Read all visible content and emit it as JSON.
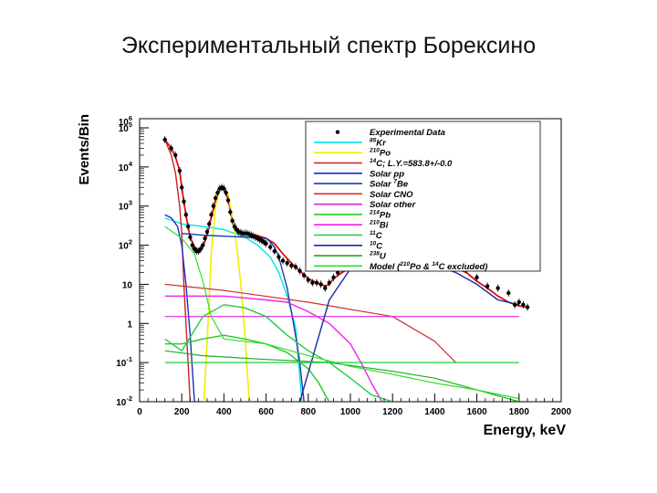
{
  "slide": {
    "title": "Экспериментальный спектр Борексино"
  },
  "chart_data": {
    "type": "line",
    "xlabel": "Energy, keV",
    "ylabel": "Events/Bin",
    "xlim": [
      0,
      2000
    ],
    "ylim": [
      0.01,
      100000
    ],
    "yscale": "log",
    "grid": false,
    "legend_position": "top-right",
    "x_ticks": [
      "0",
      "200",
      "400",
      "600",
      "800",
      "1000",
      "1200",
      "1400",
      "1600",
      "1800",
      "2000"
    ],
    "y_ticks": [
      {
        "base": "10",
        "exp": "-2",
        "value": 0.01
      },
      {
        "base": "10",
        "exp": "-1",
        "value": 0.1
      },
      {
        "base": "1",
        "exp": "",
        "value": 1
      },
      {
        "base": "10",
        "exp": "",
        "value": 10
      },
      {
        "base": "10",
        "exp": "2",
        "value": 100
      },
      {
        "base": "10",
        "exp": "3",
        "value": 1000
      },
      {
        "base": "10",
        "exp": "4",
        "value": 10000
      },
      {
        "base": "10",
        "exp": "5",
        "value": 100000
      },
      {
        "base": "10",
        "exp": "6",
        "value": 1000000
      }
    ],
    "data_series": {
      "name": "Experimental Data",
      "x": [
        120,
        150,
        170,
        190,
        200,
        210,
        220,
        230,
        240,
        250,
        260,
        270,
        280,
        290,
        300,
        310,
        320,
        330,
        340,
        350,
        360,
        370,
        380,
        390,
        400,
        410,
        420,
        430,
        440,
        450,
        460,
        470,
        480,
        490,
        500,
        510,
        520,
        530,
        540,
        550,
        560,
        570,
        580,
        590,
        600,
        620,
        640,
        660,
        680,
        700,
        720,
        740,
        760,
        780,
        800,
        820,
        840,
        860,
        880,
        900,
        920,
        940,
        960,
        980,
        1000,
        1050,
        1100,
        1150,
        1200,
        1250,
        1300,
        1350,
        1400,
        1450,
        1500,
        1550,
        1600,
        1650,
        1700,
        1750,
        1780,
        1800,
        1820,
        1840
      ],
      "y": [
        50000,
        30000,
        20000,
        8000,
        3000,
        1300,
        600,
        300,
        160,
        100,
        80,
        70,
        70,
        80,
        100,
        150,
        220,
        350,
        600,
        1000,
        1600,
        2200,
        2800,
        3000,
        2800,
        2200,
        1400,
        700,
        420,
        300,
        250,
        220,
        210,
        200,
        200,
        200,
        190,
        180,
        170,
        160,
        150,
        140,
        130,
        120,
        110,
        90,
        70,
        50,
        40,
        35,
        30,
        28,
        22,
        17,
        13,
        11,
        11,
        10,
        8,
        11,
        15,
        20,
        25,
        28,
        30,
        38,
        45,
        50,
        55,
        52,
        45,
        40,
        38,
        35,
        30,
        24,
        15,
        9,
        8,
        6,
        3,
        3.5,
        3,
        2.6
      ]
    },
    "legend": [
      {
        "kind": "marker",
        "text": "Experimental Data",
        "color": "#000000"
      },
      {
        "kind": "line",
        "text": "85Kr",
        "sup": "85",
        "main": "Kr",
        "color": "#00e5e5"
      },
      {
        "kind": "line",
        "text": "210Po",
        "sup": "210",
        "main": "Po",
        "color": "#f0f000"
      },
      {
        "kind": "line",
        "text": "14C; L.Y.=583.8+/-0.0",
        "sup": "14",
        "main": "C; L.Y.=583.8+/-0.0",
        "color": "#cc2222"
      },
      {
        "kind": "line",
        "text": "Solar pp",
        "sup": "",
        "main": "Solar pp",
        "color": "#1a2fc4"
      },
      {
        "kind": "line",
        "text": "Solar 7Be",
        "pre": "Solar ",
        "sup": "7",
        "main": "Be",
        "color": "#1a3ab0"
      },
      {
        "kind": "line",
        "text": "Solar CNO",
        "sup": "",
        "main": "Solar CNO",
        "color": "#d03030"
      },
      {
        "kind": "line",
        "text": "Solar other",
        "sup": "",
        "main": "Solar other",
        "color": "#dd22dd"
      },
      {
        "kind": "line",
        "text": "214Pb",
        "sup": "214",
        "main": "Pb",
        "color": "#22cc22"
      },
      {
        "kind": "line",
        "text": "210Bi",
        "sup": "210",
        "main": "Bi",
        "color": "#ee22ee"
      },
      {
        "kind": "line",
        "text": "11C",
        "sup": "11",
        "main": "C",
        "color": "#22cc44"
      },
      {
        "kind": "line",
        "text": "10C",
        "sup": "10",
        "main": "C",
        "color": "#1a2a9a"
      },
      {
        "kind": "line",
        "text": "238U",
        "sup": "238",
        "main": "U",
        "color": "#22aa22"
      },
      {
        "kind": "line",
        "text": "Model (210Po & 14C excluded)",
        "pre": "Model (",
        "sup": "210",
        "main": "Po & ",
        "sup2": "14",
        "main2": "C excluded)",
        "color": "#33dd33"
      }
    ],
    "series": [
      {
        "name": "Model",
        "color": "#dd1111",
        "width": 1.8,
        "x": [
          120,
          150,
          170,
          190,
          200,
          210,
          220,
          230,
          240,
          260,
          280,
          300,
          320,
          340,
          360,
          380,
          400,
          420,
          440,
          460,
          480,
          500,
          520,
          560,
          600,
          640,
          680,
          720,
          760,
          800,
          840,
          880,
          900,
          920,
          960,
          1000,
          1050,
          1100,
          1150,
          1200,
          1250,
          1300,
          1350,
          1400,
          1450,
          1500,
          1550,
          1600,
          1650,
          1700,
          1750,
          1800,
          1840
        ],
        "y": [
          50000,
          30000,
          18000,
          8000,
          3000,
          1300,
          600,
          300,
          160,
          90,
          75,
          90,
          180,
          500,
          1400,
          2500,
          2800,
          1500,
          450,
          260,
          220,
          200,
          195,
          175,
          150,
          110,
          60,
          35,
          22,
          14,
          11,
          9,
          10,
          14,
          20,
          26,
          34,
          42,
          48,
          54,
          52,
          45,
          40,
          36,
          32,
          26,
          20,
          12,
          8,
          5,
          3.5,
          2.8,
          2.6
        ]
      },
      {
        "name": "85Kr",
        "color": "#00e5e5",
        "width": 1.4,
        "x": [
          120,
          200,
          300,
          400,
          500,
          560,
          620,
          660,
          700,
          740,
          770
        ],
        "y": [
          500,
          350,
          300,
          250,
          160,
          100,
          50,
          20,
          5,
          0.8,
          0.01
        ]
      },
      {
        "name": "210Po",
        "color": "#f0f000",
        "width": 1.6,
        "x": [
          305,
          320,
          340,
          360,
          380,
          400,
          420,
          440,
          460,
          480,
          500,
          520
        ],
        "y": [
          0.01,
          0.3,
          60,
          1000,
          2500,
          2800,
          2000,
          500,
          100,
          10,
          0.5,
          0.01
        ]
      },
      {
        "name": "14C",
        "color": "#cc2222",
        "width": 1.4,
        "x": [
          120,
          150,
          170,
          190,
          200,
          210,
          220,
          230,
          240
        ],
        "y": [
          50000,
          20000,
          7000,
          1000,
          200,
          10,
          1,
          0.1,
          0.01
        ]
      },
      {
        "name": "Solar pp",
        "color": "#1a2fc4",
        "width": 1.4,
        "x": [
          120,
          150,
          180,
          200,
          220,
          240,
          260
        ],
        "y": [
          600,
          500,
          300,
          100,
          10,
          0.5,
          0.01
        ]
      },
      {
        "name": "Solar 7Be",
        "color": "#1a3ab0",
        "width": 1.4,
        "x": [
          200,
          300,
          400,
          500,
          600,
          620,
          640,
          660,
          680,
          700,
          720,
          740,
          760,
          770,
          780
        ],
        "y": [
          200,
          180,
          170,
          160,
          150,
          120,
          90,
          50,
          20,
          8,
          2,
          0.5,
          0.1,
          0.03,
          0.01
        ]
      },
      {
        "name": "Solar CNO",
        "color": "#d03030",
        "width": 1.2,
        "x": [
          120,
          400,
          800,
          1200,
          1400,
          1500
        ],
        "y": [
          10,
          7,
          3.5,
          1.5,
          0.35,
          0.1
        ]
      },
      {
        "name": "Solar other",
        "color": "#dd22dd",
        "width": 1.2,
        "x": [
          120,
          1000,
          1600,
          1800
        ],
        "y": [
          1.5,
          1.5,
          1.5,
          1.5
        ]
      },
      {
        "name": "214Pb",
        "color": "#22cc22",
        "width": 1.4,
        "x": [
          120,
          200,
          300,
          400,
          500,
          600,
          700,
          800,
          850,
          880,
          900
        ],
        "y": [
          0.3,
          0.3,
          0.4,
          0.5,
          0.4,
          0.3,
          0.18,
          0.07,
          0.03,
          0.015,
          0.01
        ]
      },
      {
        "name": "210Bi",
        "color": "#ee22ee",
        "width": 1.4,
        "x": [
          120,
          200,
          400,
          600,
          700,
          800,
          900,
          1000,
          1050,
          1100,
          1150
        ],
        "y": [
          5,
          5,
          5,
          4,
          3.5,
          2,
          1,
          0.3,
          0.1,
          0.03,
          0.01
        ]
      },
      {
        "name": "11C",
        "color": "#22cc44",
        "width": 1.4,
        "x": [
          120,
          200,
          300,
          400,
          500,
          600,
          700,
          800,
          900,
          1000,
          1100,
          1200
        ],
        "y": [
          0.4,
          0.2,
          1.5,
          3,
          2.5,
          1.5,
          0.5,
          0.2,
          0.1,
          0.04,
          0.015,
          0.01
        ]
      },
      {
        "name": "10C",
        "color": "#1a2a9a",
        "width": 1.4,
        "x": [
          760,
          900,
          1000,
          1100,
          1200,
          1300,
          1400,
          1500,
          1600,
          1700,
          1800
        ],
        "y": [
          0.01,
          4,
          25,
          40,
          45,
          40,
          30,
          20,
          10,
          4,
          3
        ]
      },
      {
        "name": "238U",
        "color": "#22aa22",
        "width": 1.2,
        "x": [
          120,
          300,
          600,
          900,
          1200,
          1400,
          1600,
          1800
        ],
        "y": [
          0.2,
          0.15,
          0.12,
          0.1,
          0.06,
          0.04,
          0.02,
          0.01
        ]
      },
      {
        "name": "Model (excluded)",
        "color": "#33dd33",
        "width": 1.2,
        "x": [
          120,
          200,
          260,
          300,
          340,
          400,
          600,
          800,
          1000,
          1200,
          1400,
          1600,
          1800
        ],
        "y": [
          300,
          150,
          60,
          12,
          1.5,
          0.4,
          0.3,
          0.15,
          0.08,
          0.05,
          0.03,
          0.02,
          0.012
        ]
      },
      {
        "name": "Model (excluded) 2",
        "color": "#22cc44",
        "width": 1.2,
        "x": [
          120,
          200,
          300,
          400,
          600,
          800,
          1000,
          1200,
          1400,
          1600,
          1800
        ],
        "y": [
          0.1,
          0.1,
          0.1,
          0.1,
          0.1,
          0.1,
          0.1,
          0.1,
          0.1,
          0.1,
          0.1
        ]
      }
    ]
  }
}
